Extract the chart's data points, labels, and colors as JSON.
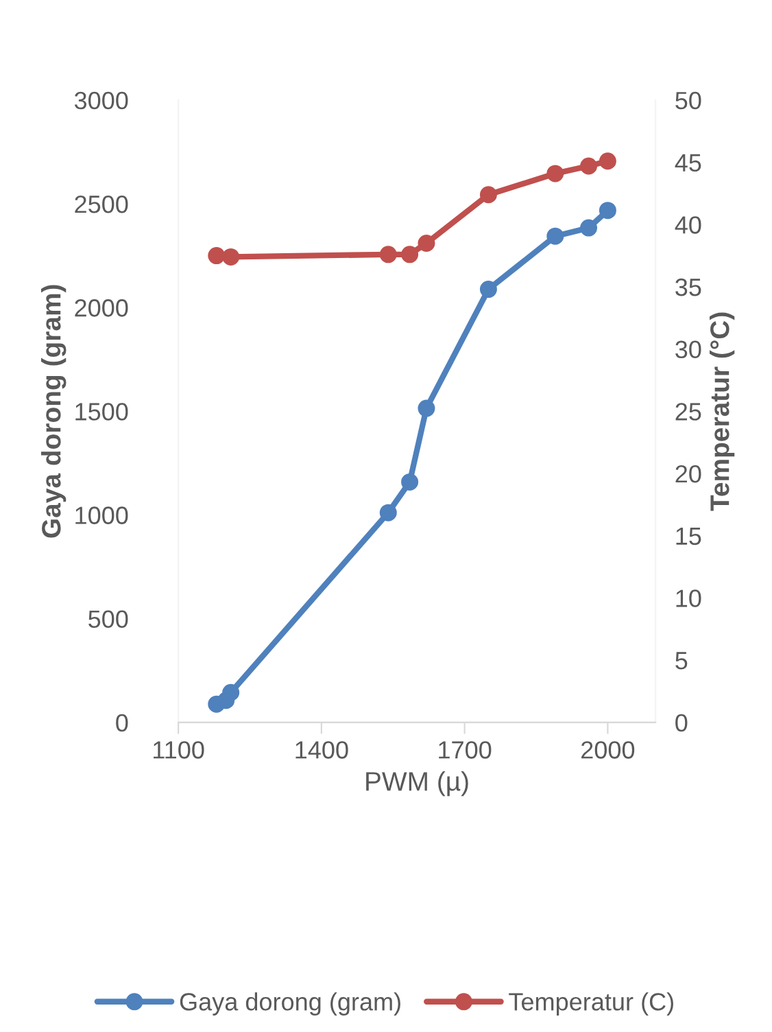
{
  "chart_data": {
    "type": "line",
    "xlabel": "PWM (µ)",
    "ylabel": "Gaya dorong (gram)",
    "y2label": "Temperatur (°C)",
    "xlim": [
      1100,
      2100
    ],
    "xticks": [
      1100,
      1400,
      1700,
      2000
    ],
    "ylim": [
      0,
      3000
    ],
    "yticks": [
      0,
      500,
      1000,
      1500,
      2000,
      2500,
      3000
    ],
    "y2lim": [
      0,
      50
    ],
    "y2ticks": [
      0,
      5,
      10,
      15,
      20,
      25,
      30,
      35,
      40,
      45,
      50
    ],
    "legend": "bottom",
    "grid": false,
    "marker": "circle",
    "line_style": "solid",
    "series": [
      {
        "name": "Gaya dorong (gram)",
        "color": "#4f81bd",
        "x": [
          1180,
          1200,
          1210,
          1540,
          1585,
          1620,
          1750,
          1890,
          1960,
          2000
        ],
        "values": [
          88,
          106,
          144,
          1011,
          1159,
          1514,
          2088,
          2344,
          2384,
          2468
        ]
      },
      {
        "name": "Temperatur (C)",
        "color": "#c0504d",
        "axis": "y2",
        "x": [
          1180,
          1210,
          1540,
          1585,
          1620,
          1750,
          1890,
          1960,
          2000
        ],
        "values": [
          37.5,
          37.4,
          37.6,
          37.6,
          38.5,
          42.4,
          44.1,
          44.7,
          45.1
        ]
      }
    ]
  }
}
